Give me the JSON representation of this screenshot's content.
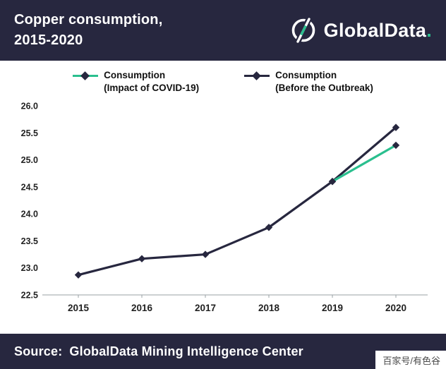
{
  "header": {
    "title_line1": "Copper consumption,",
    "title_line2": "2015-2020",
    "brand": "GlobalData",
    "brand_period": "."
  },
  "legend": [
    {
      "label_line1": "Consumption",
      "label_line2": "(Impact of COVID-19)",
      "color": "#2abf8e",
      "marker_color": "#27273f"
    },
    {
      "label_line1": "Consumption",
      "label_line2": "(Before the Outbreak)",
      "color": "#27273f",
      "marker_color": "#27273f"
    }
  ],
  "footer": {
    "source_label": "Source:",
    "source_text": "GlobalData Mining Intelligence Center"
  },
  "watermark": {
    "text": "百家号/有色谷"
  },
  "colors": {
    "navy": "#27273f",
    "teal": "#2abf8e",
    "axis": "#9aa0a6"
  },
  "chart_data": {
    "type": "line",
    "title": "Copper consumption, 2015-2020",
    "xlabel": "",
    "ylabel": "",
    "x": [
      2015,
      2016,
      2017,
      2018,
      2019,
      2020
    ],
    "series": [
      {
        "name": "Consumption (Before the Outbreak)",
        "color": "#27273f",
        "values": [
          22.87,
          23.17,
          23.25,
          23.75,
          24.6,
          25.6
        ]
      },
      {
        "name": "Consumption (Impact of COVID-19)",
        "color": "#2abf8e",
        "values": [
          null,
          null,
          null,
          null,
          24.6,
          25.27
        ]
      }
    ],
    "marker": "diamond",
    "marker_color": "#27273f",
    "ylim": [
      22.5,
      26.0
    ],
    "ytick_step": 0.5,
    "grid": false,
    "legend_position": "top"
  }
}
